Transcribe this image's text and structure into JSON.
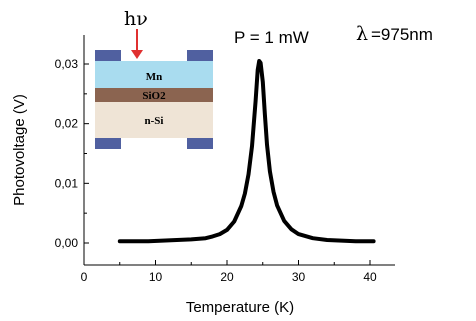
{
  "chart_data": {
    "type": "line",
    "xlabel": "Temperature (K)",
    "ylabel": "Photovoltage (V)",
    "xlim": [
      0,
      45
    ],
    "ylim": [
      -0.003,
      0.035
    ],
    "x_ticks": [
      "0",
      "10",
      "20",
      "30",
      "40"
    ],
    "y_ticks": [
      "0,00",
      "0,01",
      "0,02",
      "0,03"
    ],
    "grid": false,
    "series": [
      {
        "color": "#000000",
        "points": [
          [
            5.0,
            0.0003
          ],
          [
            7.0,
            0.0003
          ],
          [
            9.0,
            0.0003
          ],
          [
            11.0,
            0.0004
          ],
          [
            13.0,
            0.0005
          ],
          [
            15.0,
            0.0006
          ],
          [
            17.0,
            0.0008
          ],
          [
            18.0,
            0.0011
          ],
          [
            19.0,
            0.0015
          ],
          [
            20.0,
            0.0022
          ],
          [
            21.0,
            0.0036
          ],
          [
            22.0,
            0.0062
          ],
          [
            22.5,
            0.0083
          ],
          [
            23.0,
            0.0115
          ],
          [
            23.5,
            0.0162
          ],
          [
            24.0,
            0.0238
          ],
          [
            24.3,
            0.029
          ],
          [
            24.5,
            0.0305
          ],
          [
            24.7,
            0.0302
          ],
          [
            25.0,
            0.027
          ],
          [
            25.3,
            0.0215
          ],
          [
            25.6,
            0.0165
          ],
          [
            26.0,
            0.012
          ],
          [
            26.5,
            0.0086
          ],
          [
            27.0,
            0.0063
          ],
          [
            28.0,
            0.0037
          ],
          [
            29.0,
            0.0023
          ],
          [
            30.0,
            0.0015
          ],
          [
            32.0,
            0.0008
          ],
          [
            34.0,
            0.0005
          ],
          [
            36.0,
            0.0004
          ],
          [
            38.0,
            0.0003
          ],
          [
            40.5,
            0.0003
          ]
        ]
      }
    ],
    "annotations": {
      "power": "P = 1 mW",
      "wavelength_symbol": "λ",
      "wavelength_value": "=975nm",
      "photon": "hν"
    },
    "inset": {
      "layers": [
        "Mn",
        "SiO2",
        "n-Si"
      ],
      "colors": {
        "mn": "#a9dcef",
        "sio2": "#8b6450",
        "nsi": "#efe4d6",
        "contacts": "#5060a0",
        "arrow": "#e03030"
      }
    }
  }
}
